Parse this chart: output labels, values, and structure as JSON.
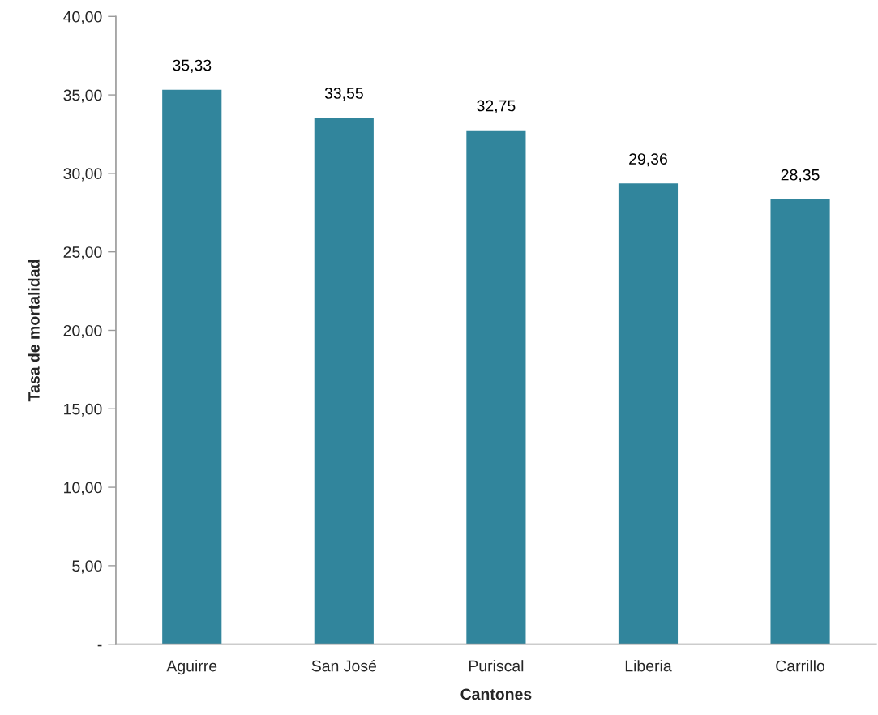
{
  "chart_data": {
    "type": "bar",
    "xlabel": "Cantones",
    "ylabel": "Tasa de mortalidad",
    "categories": [
      "Aguirre",
      "San José",
      "Puriscal",
      "Liberia",
      "Carrillo"
    ],
    "values": [
      35.33,
      33.55,
      32.75,
      29.36,
      28.35
    ],
    "value_labels": [
      "35,33",
      "33,55",
      "32,75",
      "29,36",
      "28,35"
    ],
    "color": "#31859c",
    "ylim": [
      0,
      40
    ],
    "yticks": [
      {
        "value": 0,
        "label": "-"
      },
      {
        "value": 5,
        "label": "5,00"
      },
      {
        "value": 10,
        "label": "10,00"
      },
      {
        "value": 15,
        "label": "15,00"
      },
      {
        "value": 20,
        "label": "20,00"
      },
      {
        "value": 25,
        "label": "25,00"
      },
      {
        "value": 30,
        "label": "30,00"
      },
      {
        "value": 35,
        "label": "35,00"
      },
      {
        "value": 40,
        "label": "40,00"
      }
    ],
    "grid": false,
    "legend": false
  }
}
